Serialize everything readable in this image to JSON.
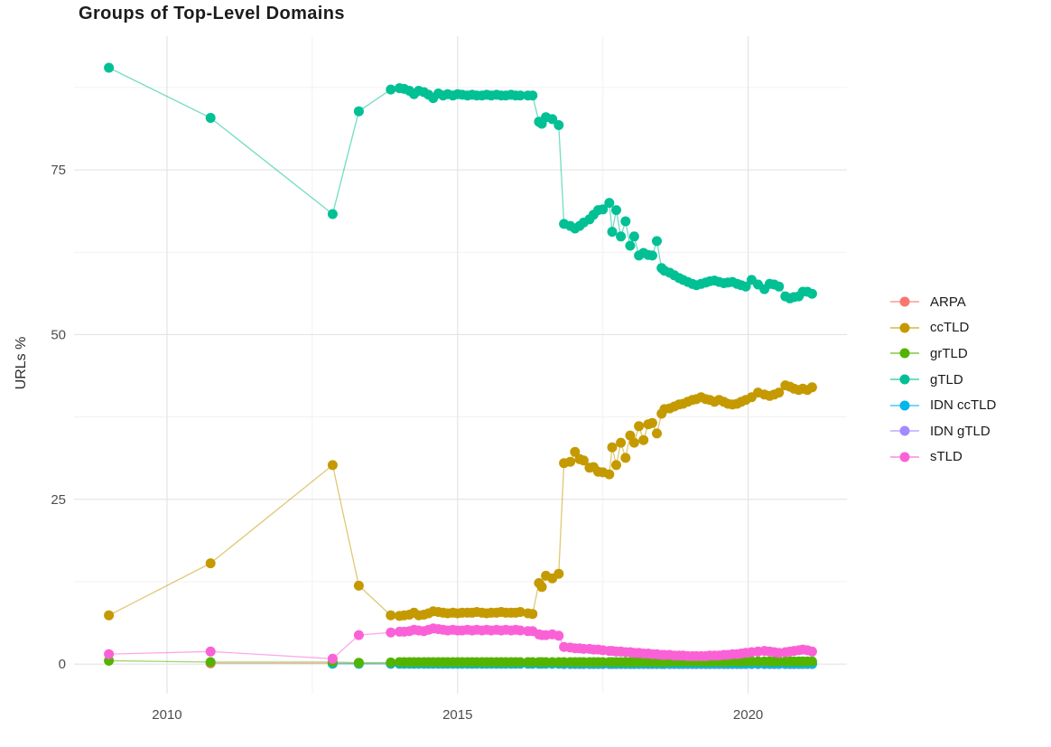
{
  "title": "Groups of Top-Level Domains",
  "y_axis_title": "URLs %",
  "chart_data": {
    "type": "line",
    "title": "Groups of Top-Level Domains",
    "xlabel": "",
    "ylabel": "URLs %",
    "grid": true,
    "legend_position": "right",
    "xlim": [
      2008.4,
      2021.7
    ],
    "ylim": [
      -4.5,
      95.3
    ],
    "x_ticks": [
      2010,
      2015,
      2020
    ],
    "x_tick_labels": [
      "2010",
      "2015",
      "2020"
    ],
    "x_minor_ticks": [
      2012.5,
      2017.5
    ],
    "y_ticks": [
      0,
      25,
      50,
      75
    ],
    "y_tick_labels": [
      "0",
      "25",
      "50",
      "75"
    ],
    "y_minor_ticks": [
      12.5,
      37.5,
      62.5,
      87.5
    ],
    "z_order": [
      "ARPA",
      "IDN gTLD",
      "IDN ccTLD",
      "grTLD",
      "ccTLD",
      "gTLD",
      "sTLD"
    ],
    "x": [
      2009.0,
      2010.75,
      2012.85,
      2013.3,
      2013.85,
      2014.0,
      2014.08,
      2014.17,
      2014.25,
      2014.33,
      2014.42,
      2014.5,
      2014.58,
      2014.67,
      2014.75,
      2014.83,
      2014.92,
      2015.0,
      2015.08,
      2015.17,
      2015.25,
      2015.33,
      2015.42,
      2015.5,
      2015.58,
      2015.67,
      2015.75,
      2015.83,
      2015.92,
      2016.0,
      2016.08,
      2016.21,
      2016.29,
      2016.4,
      2016.45,
      2016.52,
      2016.63,
      2016.74,
      2016.83,
      2016.94,
      2017.02,
      2017.1,
      2017.17,
      2017.27,
      2017.34,
      2017.42,
      2017.5,
      2017.61,
      2017.66,
      2017.73,
      2017.81,
      2017.89,
      2017.97,
      2018.04,
      2018.12,
      2018.2,
      2018.28,
      2018.35,
      2018.43,
      2018.51,
      2018.56,
      2018.65,
      2018.73,
      2018.81,
      2018.88,
      2018.96,
      2019.04,
      2019.11,
      2019.19,
      2019.27,
      2019.34,
      2019.42,
      2019.5,
      2019.58,
      2019.65,
      2019.73,
      2019.81,
      2019.88,
      2019.96,
      2020.06,
      2020.17,
      2020.28,
      2020.37,
      2020.45,
      2020.53,
      2020.64,
      2020.72,
      2020.79,
      2020.87,
      2020.94,
      2021.02,
      2021.1
    ],
    "series": [
      {
        "name": "ARPA",
        "color": "#F8766D",
        "values": [
          null,
          0.1,
          0.1,
          0.05,
          0.05,
          0.05,
          0.05,
          0.05,
          0.05,
          0.05,
          0.05,
          0.05,
          0.05,
          0.05,
          0.05,
          0.05,
          0.05,
          0.05,
          0.05,
          0.05,
          0.05,
          0.05,
          0.05,
          0.05,
          0.05,
          0.05,
          0.05,
          0.05,
          0.05,
          0.05,
          0.05,
          0.05,
          0.05,
          0.05,
          0.05,
          0.05,
          0.05,
          0.05,
          0.05,
          0.05,
          0.05,
          0.05,
          0.05,
          0.05,
          0.05,
          0.05,
          0.05,
          0.05,
          0.05,
          0.05,
          0.05,
          0.05,
          0.05,
          0.05,
          0.05,
          0.05,
          0.05,
          0.05,
          0.05,
          0.05,
          0.05,
          0.05,
          0.05,
          0.05,
          0.05,
          0.05,
          0.05,
          0.05,
          0.05,
          0.05,
          0.05,
          0.05,
          0.05,
          0.05,
          0.05,
          0.05,
          0.05,
          0.05,
          0.05,
          0.05,
          0.05,
          0.05,
          0.05,
          0.05,
          0.05,
          0.05,
          0.05,
          0.05,
          0.05,
          0.05,
          0.05,
          0.05
        ]
      },
      {
        "name": "ccTLD",
        "color": "#C49A00",
        "values": [
          7.4,
          15.3,
          30.2,
          11.9,
          7.4,
          7.3,
          7.4,
          7.5,
          7.8,
          7.4,
          7.5,
          7.7,
          8.0,
          7.9,
          7.8,
          7.7,
          7.8,
          7.7,
          7.8,
          7.8,
          7.8,
          7.9,
          7.8,
          7.7,
          7.8,
          7.8,
          7.9,
          7.8,
          7.8,
          7.8,
          7.9,
          7.7,
          7.6,
          12.3,
          11.7,
          13.4,
          13.0,
          13.7,
          30.5,
          30.7,
          32.2,
          31.1,
          30.9,
          29.8,
          29.9,
          29.2,
          29.1,
          28.8,
          32.9,
          30.2,
          33.6,
          31.3,
          34.7,
          33.6,
          36.1,
          34.0,
          36.4,
          36.6,
          35.0,
          38.0,
          38.7,
          38.8,
          39.1,
          39.4,
          39.5,
          39.8,
          40.1,
          40.2,
          40.5,
          40.2,
          40.1,
          39.8,
          40.1,
          39.8,
          39.5,
          39.4,
          39.5,
          39.8,
          40.1,
          40.5,
          41.2,
          40.9,
          40.7,
          40.9,
          41.2,
          42.3,
          42.1,
          41.8,
          41.6,
          41.8,
          41.6,
          42.0
        ]
      },
      {
        "name": "grTLD",
        "color": "#53B400",
        "values": [
          0.5,
          0.3,
          0.3,
          0.2,
          0.25,
          0.3,
          0.3,
          0.3,
          0.3,
          0.3,
          0.3,
          0.3,
          0.3,
          0.3,
          0.3,
          0.3,
          0.3,
          0.3,
          0.3,
          0.3,
          0.3,
          0.3,
          0.3,
          0.3,
          0.3,
          0.3,
          0.3,
          0.3,
          0.3,
          0.3,
          0.3,
          0.3,
          0.3,
          0.3,
          0.3,
          0.3,
          0.3,
          0.3,
          0.3,
          0.3,
          0.3,
          0.3,
          0.3,
          0.3,
          0.3,
          0.3,
          0.3,
          0.3,
          0.3,
          0.3,
          0.3,
          0.3,
          0.3,
          0.3,
          0.3,
          0.3,
          0.3,
          0.3,
          0.3,
          0.3,
          0.3,
          0.35,
          0.35,
          0.35,
          0.35,
          0.35,
          0.35,
          0.35,
          0.35,
          0.35,
          0.35,
          0.35,
          0.35,
          0.35,
          0.35,
          0.4,
          0.4,
          0.4,
          0.4,
          0.4,
          0.4,
          0.4,
          0.4,
          0.4,
          0.4,
          0.4,
          0.4,
          0.4,
          0.4,
          0.4,
          0.4,
          0.4
        ]
      },
      {
        "name": "gTLD",
        "color": "#00C094",
        "values": [
          90.5,
          82.9,
          68.3,
          83.9,
          87.2,
          87.4,
          87.3,
          87.0,
          86.5,
          87.0,
          86.8,
          86.4,
          85.9,
          86.6,
          86.3,
          86.5,
          86.3,
          86.5,
          86.4,
          86.3,
          86.4,
          86.3,
          86.3,
          86.4,
          86.3,
          86.4,
          86.3,
          86.3,
          86.4,
          86.3,
          86.3,
          86.3,
          86.3,
          82.3,
          82.0,
          83.0,
          82.7,
          81.8,
          66.8,
          66.5,
          66.1,
          66.5,
          67.0,
          67.5,
          68.2,
          68.9,
          69.0,
          70.0,
          65.6,
          68.9,
          64.9,
          67.2,
          63.5,
          64.9,
          62.0,
          62.4,
          62.1,
          62.0,
          64.2,
          60.1,
          59.7,
          59.4,
          59.0,
          58.6,
          58.3,
          58.0,
          57.7,
          57.5,
          57.7,
          57.9,
          58.1,
          58.2,
          58.0,
          57.8,
          57.9,
          58.0,
          57.7,
          57.5,
          57.3,
          58.3,
          57.6,
          56.9,
          57.7,
          57.6,
          57.3,
          55.8,
          55.5,
          55.7,
          55.8,
          56.5,
          56.5,
          56.2
        ]
      },
      {
        "name": "IDN ccTLD",
        "color": "#00B6EB",
        "values": [
          null,
          null,
          0.05,
          0.05,
          0.05,
          0.05,
          0.05,
          0.05,
          0.05,
          0.05,
          0.05,
          0.05,
          0.05,
          0.05,
          0.05,
          0.05,
          0.05,
          0.05,
          0.05,
          0.05,
          0.05,
          0.05,
          0.05,
          0.05,
          0.05,
          0.05,
          0.05,
          0.05,
          0.05,
          0.05,
          0.05,
          0.05,
          0.05,
          0.05,
          0.05,
          0.05,
          0.05,
          0.05,
          0.05,
          0.05,
          0.05,
          0.05,
          0.05,
          0.05,
          0.05,
          0.05,
          0.05,
          0.05,
          0.05,
          0.05,
          0.05,
          0.05,
          0.05,
          0.05,
          0.05,
          0.05,
          0.05,
          0.05,
          0.05,
          0.05,
          0.05,
          0.05,
          0.05,
          0.05,
          0.05,
          0.05,
          0.05,
          0.05,
          0.05,
          0.05,
          0.05,
          0.05,
          0.05,
          0.05,
          0.05,
          0.05,
          0.05,
          0.05,
          0.05,
          0.05,
          0.05,
          0.05,
          0.05,
          0.05,
          0.05,
          0.05,
          0.05,
          0.05,
          0.05,
          0.05,
          0.05,
          0.05
        ]
      },
      {
        "name": "IDN gTLD",
        "color": "#A58AFF",
        "values": [
          null,
          null,
          null,
          null,
          null,
          null,
          null,
          null,
          null,
          null,
          null,
          null,
          null,
          null,
          null,
          null,
          null,
          null,
          null,
          null,
          null,
          null,
          null,
          null,
          null,
          null,
          null,
          null,
          null,
          null,
          null,
          null,
          null,
          null,
          null,
          null,
          null,
          null,
          0.0,
          0.0,
          0.0,
          0.0,
          0.0,
          0.0,
          0.0,
          0.0,
          0.0,
          0.0,
          0.0,
          0.0,
          0.0,
          0.0,
          0.0,
          0.0,
          0.0,
          0.0,
          0.0,
          0.0,
          0.0,
          0.0,
          0.0,
          0.0,
          0.0,
          0.0,
          0.0,
          0.0,
          0.0,
          0.0,
          0.0,
          0.0,
          0.0,
          0.0,
          0.0,
          0.0,
          0.0,
          0.0,
          0.0,
          0.0,
          0.0,
          0.0,
          0.0,
          0.0,
          0.0,
          0.0,
          0.0,
          0.0,
          0.0,
          0.0,
          0.0,
          0.0,
          0.0,
          0.0
        ]
      },
      {
        "name": "sTLD",
        "color": "#FB61D7",
        "values": [
          1.5,
          1.9,
          0.8,
          4.4,
          4.8,
          4.9,
          4.9,
          5.0,
          5.2,
          5.1,
          5.0,
          5.2,
          5.4,
          5.3,
          5.2,
          5.1,
          5.2,
          5.1,
          5.1,
          5.2,
          5.1,
          5.2,
          5.1,
          5.2,
          5.1,
          5.2,
          5.1,
          5.2,
          5.1,
          5.2,
          5.1,
          5.0,
          5.0,
          4.5,
          4.4,
          4.4,
          4.5,
          4.3,
          2.6,
          2.5,
          2.4,
          2.4,
          2.3,
          2.3,
          2.2,
          2.2,
          2.1,
          2.0,
          2.0,
          1.9,
          1.9,
          1.8,
          1.8,
          1.7,
          1.7,
          1.6,
          1.6,
          1.5,
          1.5,
          1.4,
          1.4,
          1.4,
          1.3,
          1.3,
          1.3,
          1.2,
          1.2,
          1.2,
          1.2,
          1.2,
          1.3,
          1.3,
          1.3,
          1.4,
          1.4,
          1.5,
          1.5,
          1.6,
          1.7,
          1.8,
          1.9,
          2.0,
          1.9,
          1.8,
          1.7,
          1.8,
          1.9,
          2.0,
          2.1,
          2.2,
          2.1,
          1.9
        ]
      }
    ]
  }
}
